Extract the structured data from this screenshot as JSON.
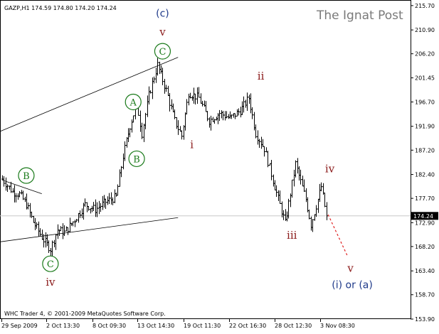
{
  "chart_data": {
    "type": "bar",
    "title": "GAZP,H1 174.59 174.80 174.20 174.24",
    "watermark": "The Ignat Post",
    "footer": "WHC Trader 4, © 2001-2009 MetaQuotes Software Corp.",
    "ylim": [
      153.9,
      216.8
    ],
    "y_ticks": [
      "215.70",
      "210.90",
      "206.20",
      "201.45",
      "196.70",
      "191.90",
      "187.20",
      "182.40",
      "177.70",
      "172.90",
      "168.20",
      "163.40",
      "158.70",
      "153.90"
    ],
    "x_ticks": [
      "29 Sep 2009",
      "2 Oct 13:30",
      "8 Oct 09:30",
      "13 Oct 14:30",
      "19 Oct 11:30",
      "22 Oct 16:30",
      "28 Oct 12:30",
      "3 Nov 08:30"
    ],
    "last_price": "174.24",
    "anchors": [
      {
        "i": 0,
        "v": 181.5
      },
      {
        "i": 6,
        "v": 179.0
      },
      {
        "i": 10,
        "v": 178.5
      },
      {
        "i": 14,
        "v": 176.5
      },
      {
        "i": 18,
        "v": 173.0
      },
      {
        "i": 24,
        "v": 169.5
      },
      {
        "i": 28,
        "v": 167.7
      },
      {
        "i": 32,
        "v": 171.5
      },
      {
        "i": 36,
        "v": 171.0
      },
      {
        "i": 42,
        "v": 173.5
      },
      {
        "i": 48,
        "v": 176.5
      },
      {
        "i": 54,
        "v": 175.5
      },
      {
        "i": 60,
        "v": 177.0
      },
      {
        "i": 66,
        "v": 178.0
      },
      {
        "i": 70,
        "v": 186.0
      },
      {
        "i": 74,
        "v": 192.0
      },
      {
        "i": 78,
        "v": 196.5
      },
      {
        "i": 81,
        "v": 190.5
      },
      {
        "i": 85,
        "v": 198.0
      },
      {
        "i": 90,
        "v": 204.0
      },
      {
        "i": 95,
        "v": 199.0
      },
      {
        "i": 100,
        "v": 193.0
      },
      {
        "i": 104,
        "v": 190.0
      },
      {
        "i": 108,
        "v": 198.5
      },
      {
        "i": 114,
        "v": 197.5
      },
      {
        "i": 120,
        "v": 193.0
      },
      {
        "i": 126,
        "v": 194.5
      },
      {
        "i": 132,
        "v": 193.5
      },
      {
        "i": 138,
        "v": 195.0
      },
      {
        "i": 143,
        "v": 197.5
      },
      {
        "i": 147,
        "v": 190.5
      },
      {
        "i": 152,
        "v": 187.5
      },
      {
        "i": 158,
        "v": 180.0
      },
      {
        "i": 164,
        "v": 172.8
      },
      {
        "i": 170,
        "v": 184.5
      },
      {
        "i": 176,
        "v": 177.5
      },
      {
        "i": 179,
        "v": 172.5
      },
      {
        "i": 185,
        "v": 180.0
      },
      {
        "i": 188,
        "v": 174.24
      }
    ],
    "channels": [
      {
        "name": "upper-channel",
        "from": {
          "i": -4,
          "v": 190.5
        },
        "to": {
          "i": 102,
          "v": 205.5
        }
      },
      {
        "name": "lower-channel",
        "from": {
          "i": -4,
          "v": 169.0
        },
        "to": {
          "i": 102,
          "v": 173.9
        }
      },
      {
        "name": "wave-b-line",
        "from": {
          "i": 0,
          "v": 181.3
        },
        "to": {
          "i": 23,
          "v": 178.6
        }
      }
    ],
    "projection": {
      "from": {
        "i": 189,
        "v": 174.5
      },
      "to": {
        "i": 200,
        "v": 166.5
      }
    },
    "wave_labels": [
      {
        "name": "wave-c-paren",
        "text": "(c)",
        "i": 93,
        "v": 214.2,
        "style": "blue"
      },
      {
        "name": "wave-v-top",
        "text": "v",
        "i": 93,
        "v": 210.5,
        "style": "red"
      },
      {
        "name": "wave-C-top",
        "text": "C",
        "i": 93,
        "v": 206.7,
        "style": "circle"
      },
      {
        "name": "wave-A",
        "text": "A",
        "i": 76,
        "v": 196.7,
        "style": "circle"
      },
      {
        "name": "wave-B-right",
        "text": "B",
        "i": 78,
        "v": 185.5,
        "style": "circle"
      },
      {
        "name": "wave-B-left",
        "text": "B",
        "i": 14,
        "v": 182.2,
        "style": "circle"
      },
      {
        "name": "wave-C-bottom",
        "text": "C",
        "i": 28,
        "v": 164.8,
        "style": "circle"
      },
      {
        "name": "wave-iv-bottom",
        "text": "iv",
        "i": 28,
        "v": 161.2,
        "style": "red"
      },
      {
        "name": "wave-ii",
        "text": "ii",
        "i": 150,
        "v": 201.8,
        "style": "red"
      },
      {
        "name": "wave-i",
        "text": "i",
        "i": 110,
        "v": 188.3,
        "style": "red"
      },
      {
        "name": "wave-iii",
        "text": "iii",
        "i": 168,
        "v": 170.4,
        "style": "red"
      },
      {
        "name": "wave-iv-right",
        "text": "iv",
        "i": 190,
        "v": 183.5,
        "style": "red"
      },
      {
        "name": "wave-v-bottom",
        "text": "v",
        "i": 202,
        "v": 163.9,
        "style": "red"
      },
      {
        "name": "wave-i-or-a",
        "text": "(i) or (a)",
        "i": 203,
        "v": 160.7,
        "style": "blue"
      }
    ]
  }
}
